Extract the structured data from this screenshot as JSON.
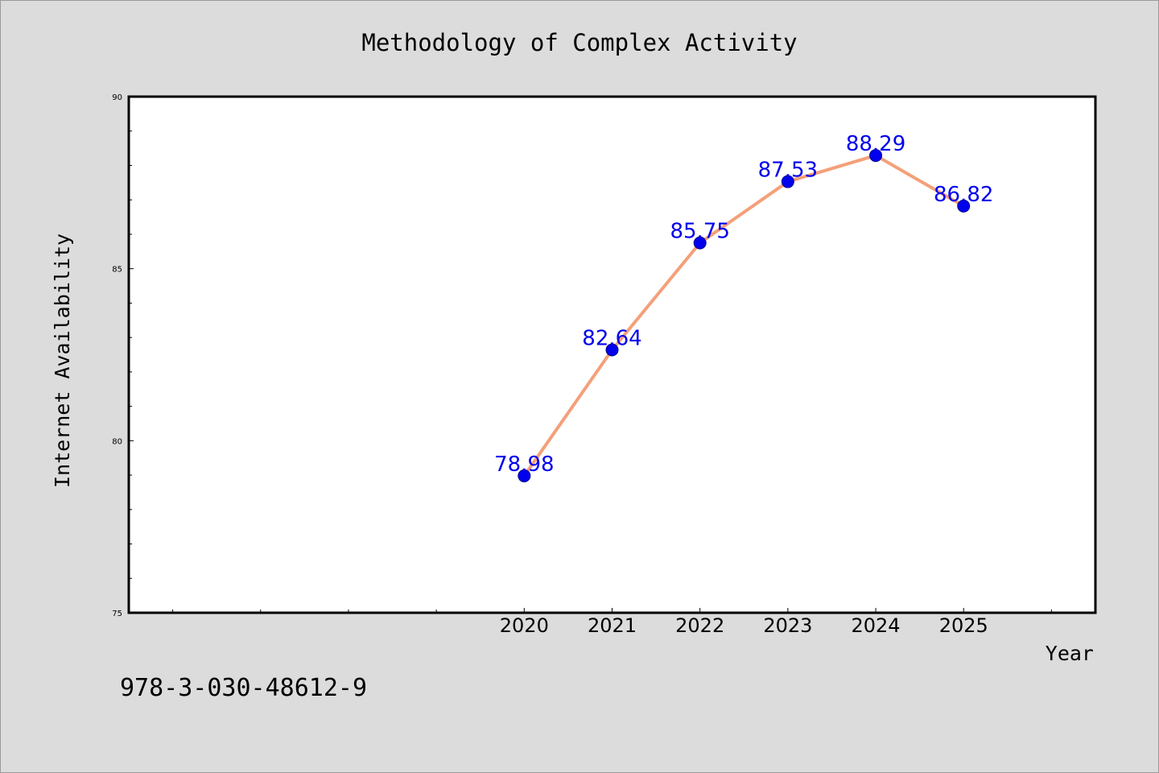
{
  "chart_data": {
    "type": "line",
    "title": "Methodology of Complex Activity",
    "xlabel": "Year",
    "ylabel": "Internet Availability",
    "x": [
      2020,
      2021,
      2022,
      2023,
      2024,
      2025
    ],
    "series": [
      {
        "values": [
          78.98,
          82.64,
          85.75,
          87.53,
          88.29,
          86.82
        ]
      }
    ],
    "data_labels": [
      "78.98",
      "82.64",
      "85.75",
      "87.53",
      "88.29",
      "86.82"
    ],
    "ylim": [
      75,
      90
    ],
    "xlim": [
      2015.5,
      2026.5
    ],
    "yticks": [
      75,
      80,
      85,
      90
    ],
    "xticks": [
      2020,
      2021,
      2022,
      2023,
      2024,
      2025
    ],
    "grid": false,
    "line_color": "#f4a07a",
    "marker_color": "#0000ee",
    "label_color": "#0000ee"
  },
  "footer": {
    "code": "978-3-030-48612-9"
  }
}
